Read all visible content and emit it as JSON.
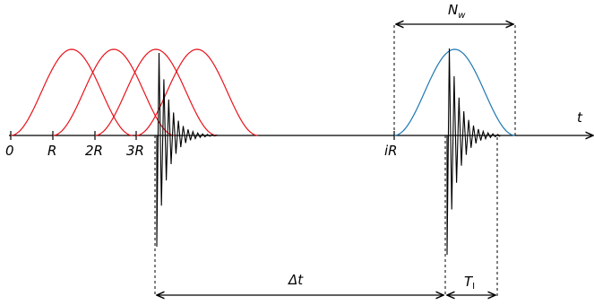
{
  "colors": {
    "axis": "#000000",
    "windows": "#e8141c",
    "active_window": "#1f78b4",
    "signal": "#000000",
    "guides": "#000000"
  },
  "axis": {
    "tick_labels": [
      "0",
      "R",
      "2R",
      "3R"
    ],
    "ir_label": "iR",
    "time_label": "t"
  },
  "annotations": {
    "nw_label": "N",
    "nw_sub": "w",
    "delta_t": "Δt",
    "ti_label": "T",
    "ti_sub": "I"
  }
}
